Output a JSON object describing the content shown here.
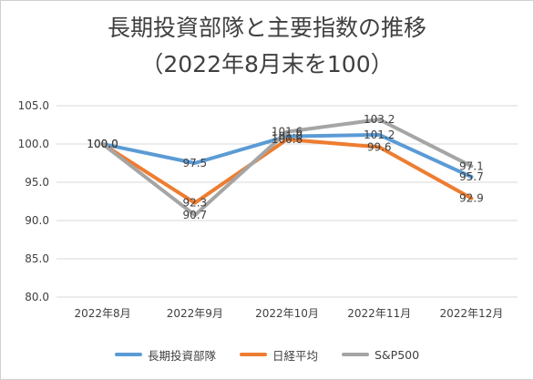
{
  "chart_data": {
    "type": "line",
    "title": "長期投資部隊と主要指数の推移",
    "subtitle": "（2022年8月末を100）",
    "categories": [
      "2022年8月",
      "2022年9月",
      "2022年10月",
      "2022年11月",
      "2022年12月"
    ],
    "ylim": [
      80,
      105
    ],
    "yticks": [
      "80.0",
      "85.0",
      "90.0",
      "95.0",
      "100.0",
      "105.0"
    ],
    "grid": true,
    "legend_position": "bottom",
    "series": [
      {
        "name": "長期投資部隊",
        "color": "#5b9bd5",
        "values": [
          100.0,
          97.5,
          101.0,
          101.2,
          95.7
        ],
        "labels": [
          "100.0",
          "97.5",
          "101.0",
          "101.2",
          "95.7"
        ]
      },
      {
        "name": "日経平均",
        "color": "#ed7d31",
        "values": [
          100.0,
          92.3,
          100.6,
          99.6,
          92.9
        ],
        "labels": [
          "100.0",
          "92.3",
          "100.6",
          "99.6",
          "92.9"
        ]
      },
      {
        "name": "S&P500",
        "color": "#a5a5a5",
        "values": [
          100.0,
          90.7,
          101.6,
          103.2,
          97.1
        ],
        "labels": [
          "100.0",
          "90.7",
          "101.6",
          "103.2",
          "97.1"
        ]
      }
    ]
  }
}
